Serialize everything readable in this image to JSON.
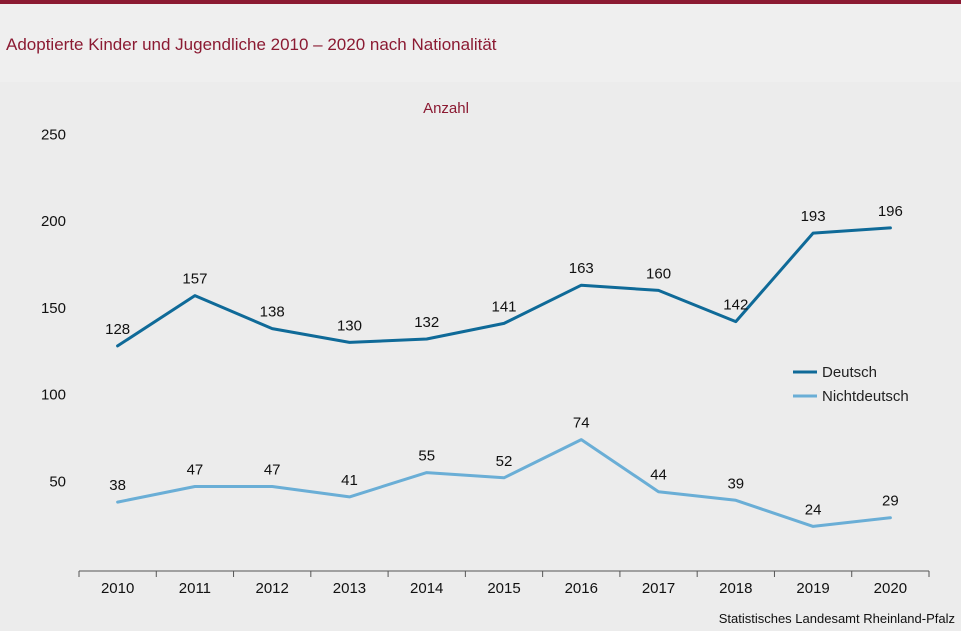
{
  "header": {
    "title": "Adoptierte Kinder und  Jugendliche 2010 – 2020 nach Nationalität"
  },
  "source": "Statistisches Landesamt  Rheinland-Pfalz",
  "colors": {
    "accent": "#8b1a32",
    "deutsch": "#0f6a98",
    "nichtdeutsch": "#6aaed6"
  },
  "chart_data": {
    "type": "line",
    "title": "",
    "unit_label": "Anzahl",
    "xlabel": "",
    "ylabel": "",
    "x": [
      "2010",
      "2011",
      "2012",
      "2013",
      "2014",
      "2015",
      "2016",
      "2017",
      "2018",
      "2019",
      "2020"
    ],
    "y_ticks": [
      "50",
      "100",
      "150",
      "200",
      "250"
    ],
    "ylim": [
      0,
      250
    ],
    "grid": false,
    "legend_position": "right",
    "series": [
      {
        "name": "Deutsch",
        "color": "#0f6a98",
        "values": [
          128,
          157,
          138,
          130,
          132,
          141,
          163,
          160,
          142,
          193,
          196
        ]
      },
      {
        "name": "Nichtdeutsch",
        "color": "#6aaed6",
        "values": [
          38,
          47,
          47,
          41,
          55,
          52,
          74,
          44,
          39,
          24,
          29
        ]
      }
    ]
  }
}
